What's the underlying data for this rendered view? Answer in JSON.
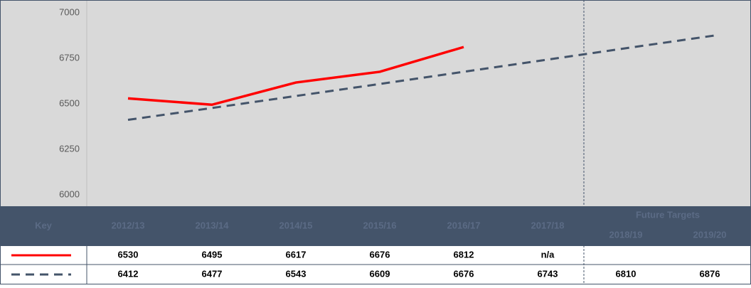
{
  "chart_data": {
    "type": "line",
    "categories": [
      "2012/13",
      "2013/14",
      "2014/15",
      "2015/16",
      "2016/17",
      "2017/18",
      "2018/19",
      "2019/20"
    ],
    "series": [
      {
        "color": "#ff0000",
        "dash": false,
        "values": [
          6530,
          6495,
          6617,
          6676,
          6812,
          null,
          null,
          null
        ],
        "value_labels": [
          "6530",
          "6495",
          "6617",
          "6676",
          "6812",
          "n/a",
          null,
          null
        ]
      },
      {
        "color": "#44546a",
        "dash": true,
        "values": [
          6412,
          6477,
          6543,
          6609,
          6676,
          6743,
          6810,
          6876
        ]
      }
    ],
    "ylim": [
      6000,
      7000
    ],
    "yticks": [
      6000,
      6250,
      6500,
      6750,
      7000
    ],
    "key_header": "Key",
    "group_label": "Future Targets"
  }
}
